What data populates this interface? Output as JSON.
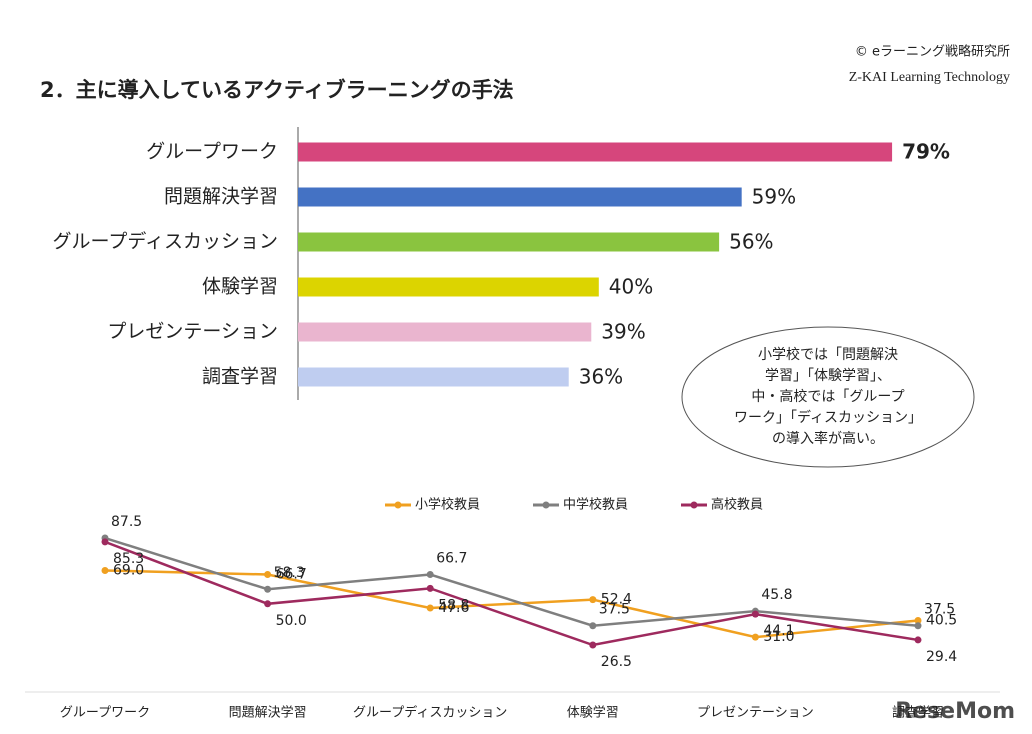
{
  "header": {
    "copyright": "© eラーニング戦略研究所",
    "logo": "Z-KAI Learning Technology"
  },
  "watermark": "ReseMom",
  "chart_data": [
    {
      "type": "hbar",
      "title": "2．主に導入しているアクティブラーニングの手法",
      "categories": [
        "グループワーク",
        "問題解決学習",
        "グループディスカッション",
        "体験学習",
        "プレゼンテーション",
        "調査学習"
      ],
      "values": [
        79,
        59,
        56,
        40,
        39,
        36
      ],
      "value_labels": [
        "79%",
        "59%",
        "56%",
        "40%",
        "39%",
        "36%"
      ],
      "colors": [
        "#d6467c",
        "#4472c4",
        "#8ac43f",
        "#dcd400",
        "#eab5cf",
        "#bfcdf0"
      ],
      "annotation": [
        "小学校では「問題解決",
        "学習」「体験学習」、",
        "中・高校では「グループ",
        "ワーク」「ディスカッション」",
        "の導入率が高い。"
      ]
    },
    {
      "type": "line",
      "categories": [
        "グループワーク",
        "問題解決学習",
        "グループディスカッション",
        "体験学習",
        "プレゼンテーション",
        "調査学習"
      ],
      "series": [
        {
          "name": "小学校教員",
          "color": "#f0a020",
          "values": [
            69.0,
            66.7,
            47.6,
            52.4,
            31.0,
            40.5
          ],
          "value_labels": [
            "69.0",
            "66.7",
            "47.6",
            "52.4",
            "31.0",
            "40.5"
          ]
        },
        {
          "name": "中学校教員",
          "color": "#7f7f7f",
          "values": [
            87.5,
            58.3,
            66.7,
            37.5,
            45.8,
            37.5
          ],
          "value_labels": [
            "87.5",
            "58.3",
            "66.7",
            "37.5",
            "45.8",
            "37.5"
          ]
        },
        {
          "name": "高校教員",
          "color": "#9e2a5e",
          "values": [
            85.3,
            50.0,
            58.8,
            26.5,
            44.1,
            29.4
          ],
          "value_labels": [
            "85.3",
            "50.0",
            "58.8",
            "26.5",
            "44.1",
            "29.4"
          ]
        }
      ],
      "legend": "top"
    }
  ]
}
